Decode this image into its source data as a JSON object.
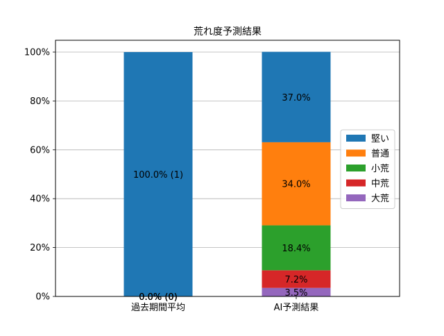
{
  "chart_data": {
    "type": "bar",
    "stacked": true,
    "title": "荒れ度予測結果",
    "categories": [
      "過去期間平均",
      "AI予測結果"
    ],
    "ylim": [
      0,
      100
    ],
    "yticks": [
      0,
      20,
      40,
      60,
      80,
      100
    ],
    "ytick_labels": [
      "0%",
      "20%",
      "40%",
      "60%",
      "80%",
      "100%"
    ],
    "grid": "y",
    "legend_position": "right",
    "series": [
      {
        "name": "堅い",
        "color": "#1f77b4",
        "values": [
          100.0,
          37.0
        ],
        "labels": [
          "100.0% (1)",
          "37.0%"
        ]
      },
      {
        "name": "普通",
        "color": "#ff7f0e",
        "values": [
          0.0,
          34.0
        ],
        "labels": [
          "0.0% (0)",
          "34.0%"
        ]
      },
      {
        "name": "小荒",
        "color": "#2ca02c",
        "values": [
          0.0,
          18.4
        ],
        "labels": [
          "0.0% (0)",
          "18.4%"
        ]
      },
      {
        "name": "中荒",
        "color": "#d62728",
        "values": [
          0.0,
          7.2
        ],
        "labels": [
          "0.0% (0)",
          "7.2%"
        ]
      },
      {
        "name": "大荒",
        "color": "#9467bd",
        "values": [
          0.0,
          3.5
        ],
        "labels": [
          "0.0% (0)",
          "3.5%"
        ]
      }
    ]
  }
}
